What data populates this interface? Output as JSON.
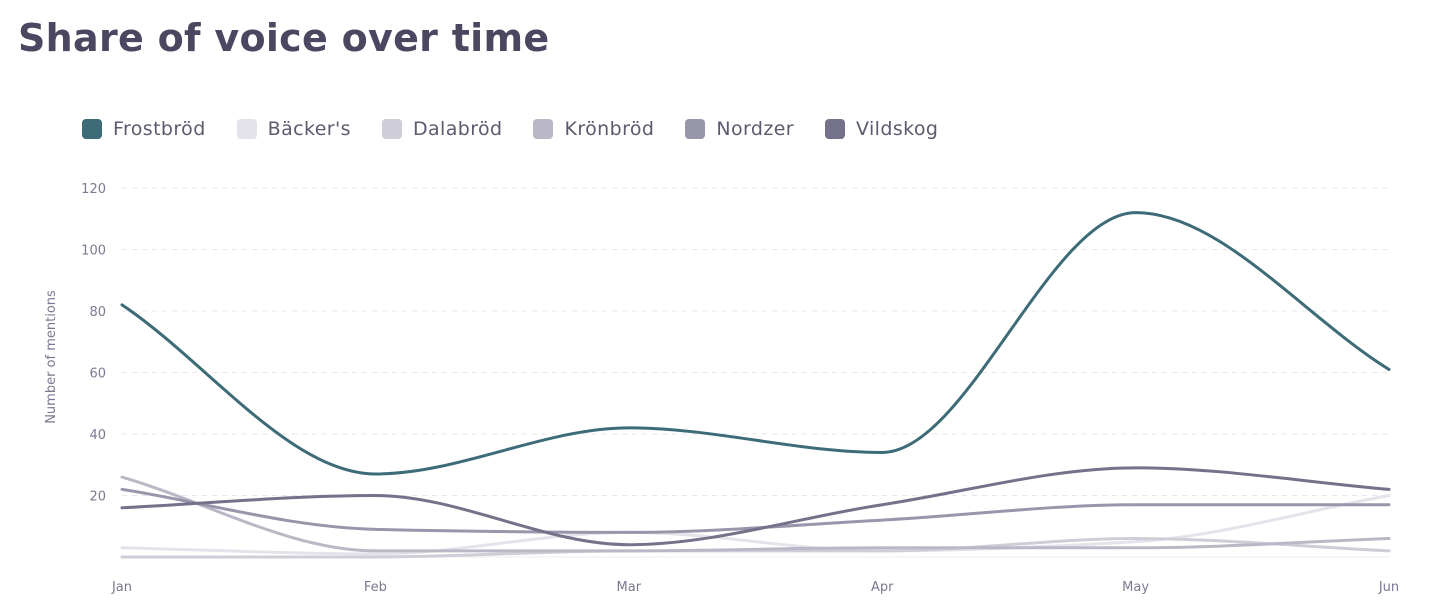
{
  "chart_data": {
    "type": "line",
    "title": "Share of voice over time",
    "xlabel": "",
    "ylabel": "Number of mentions",
    "categories": [
      "Jan",
      "Feb",
      "Mar",
      "Apr",
      "May",
      "Jun"
    ],
    "yticks": [
      20,
      40,
      60,
      80,
      100,
      120
    ],
    "ylim": [
      0,
      120
    ],
    "grid": true,
    "legend_position": "top-left",
    "series": [
      {
        "name": "Frostbröd",
        "color": "#3d6b78",
        "values": [
          82,
          27,
          42,
          34,
          112,
          61
        ]
      },
      {
        "name": "Bäcker's",
        "color": "#e4e3ea",
        "values": [
          3,
          1,
          8,
          2,
          5,
          20
        ]
      },
      {
        "name": "Dalabröd",
        "color": "#cfcdd8",
        "values": [
          0,
          0,
          2,
          2,
          6,
          2
        ]
      },
      {
        "name": "Krönbröd",
        "color": "#bab8c7",
        "values": [
          26,
          2,
          2,
          3,
          3,
          6
        ]
      },
      {
        "name": "Nordzer",
        "color": "#9896aa",
        "values": [
          22,
          9,
          8,
          12,
          17,
          17
        ]
      },
      {
        "name": "Vildskog",
        "color": "#74718a",
        "values": [
          16,
          20,
          4,
          17,
          29,
          22
        ]
      }
    ]
  }
}
